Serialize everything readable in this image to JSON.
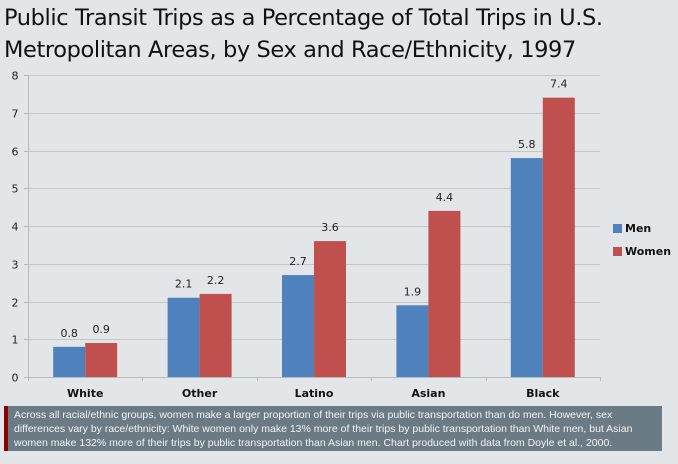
{
  "chart_data": {
    "type": "bar",
    "title": "Public Transit Trips as a Percentage of Total Trips in U.S. Metropolitan Areas, by Sex and Race/Ethnicity, 1997",
    "xlabel": "",
    "ylabel": "",
    "ylim": [
      0,
      8
    ],
    "yticks": [
      0,
      1,
      2,
      3,
      4,
      5,
      6,
      7,
      8
    ],
    "grid": true,
    "legend_position": "right",
    "categories": [
      "White",
      "Other",
      "Latino",
      "Asian",
      "Black"
    ],
    "series": [
      {
        "name": "Men",
        "color": "#4f81bd",
        "values": [
          0.8,
          2.1,
          2.7,
          1.9,
          5.8
        ]
      },
      {
        "name": "Women",
        "color": "#c0504d",
        "values": [
          0.9,
          2.2,
          3.6,
          4.4,
          7.4
        ]
      }
    ]
  },
  "caption": "Across all racial/ethnic groups, women make a larger proportion of their trips via public transportation than do men. However, sex differences vary by race/ethnicity: White women only make 13% more of their trips by public transportation than White men, but Asian women make 132% more of their trips by public transportation than Asian men. Chart produced with data from Doyle et al., 2000.",
  "colors": {
    "background": "#e3e6e9",
    "caption_background": "#6b7b85",
    "caption_accent": "#8b0000",
    "gridline": "#c4c6c8"
  }
}
